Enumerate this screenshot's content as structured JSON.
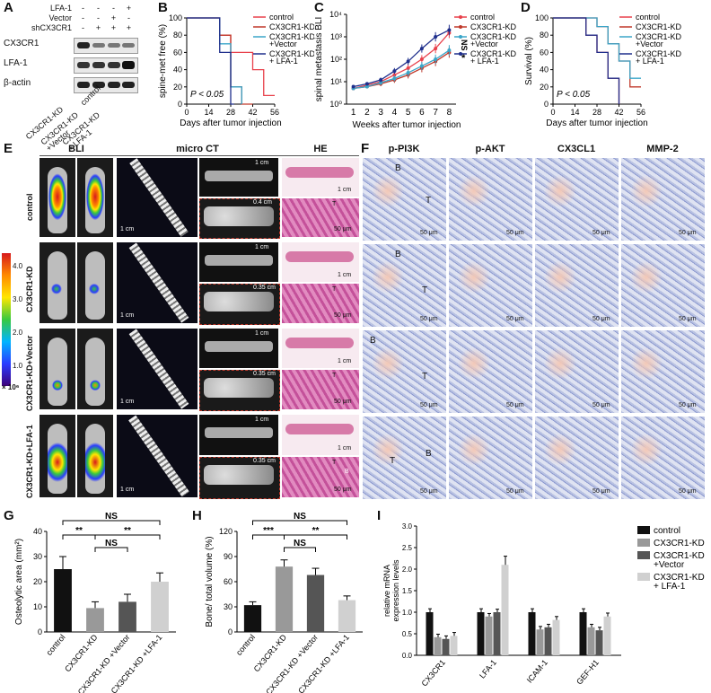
{
  "panel_letters": {
    "A": "A",
    "B": "B",
    "C": "C",
    "D": "D",
    "E": "E",
    "F": "F",
    "G": "G",
    "H": "H",
    "I": "I"
  },
  "panelA": {
    "rows": [
      "LFA-1",
      "Vector",
      "shCX3CR1"
    ],
    "signs": [
      [
        "-",
        "-",
        "-",
        "+"
      ],
      [
        "-",
        "-",
        "+",
        "-"
      ],
      [
        "-",
        "+",
        "+",
        "+"
      ]
    ],
    "blots": [
      "CX3CR1",
      "LFA-1",
      "β-actin"
    ],
    "lanes": [
      "control",
      "CX3CR1-KD",
      "CX3CR1-KD\n+Vector",
      "CX3CR1-KD\n+ LFA-1"
    ]
  },
  "panelB": {
    "ylabel": "spine-met free (%)",
    "xlabel": "Days after tumor injection",
    "pvalue": "P < 0.05",
    "yticks": [
      "0",
      "20",
      "40",
      "60",
      "80",
      "100"
    ],
    "xticks": [
      "0",
      "14",
      "28",
      "42",
      "56"
    ],
    "legend": [
      "control",
      "CX3CR1-KD",
      "CX3CR1-KD\n+Vector",
      "CX3CR1-KD\n+ LFA-1"
    ]
  },
  "panelC": {
    "ylabel": "spinal metastasis BLI",
    "xlabel": "Weeks after tumor injection",
    "yticks": [
      "10⁰",
      "10¹",
      "10²",
      "10³",
      "10⁴"
    ],
    "xticks": [
      "1",
      "2",
      "3",
      "4",
      "5",
      "6",
      "7",
      "8"
    ],
    "ns": "NS",
    "star": "*",
    "legend": [
      "control",
      "CX3CR1-KD",
      "CX3CR1-KD\n+Vector",
      "CX3CR1-KD\n+ LFA-1"
    ]
  },
  "panelD": {
    "ylabel": "Survival (%)",
    "xlabel": "Days after tumor injection",
    "pvalue": "P < 0.05",
    "yticks": [
      "0",
      "20",
      "40",
      "60",
      "80",
      "100"
    ],
    "xticks": [
      "0",
      "14",
      "28",
      "42",
      "56"
    ],
    "legend": [
      "control",
      "CX3CR1-KD",
      "CX3CR1-KD\n+Vector",
      "CX3CR1-KD\n+ LFA-1"
    ]
  },
  "panelE": {
    "headers": [
      "BLI",
      "micro CT",
      "HE"
    ],
    "rows": [
      "control",
      "CX3CR1-KD",
      "CX3CR1-KD+Vector",
      "CX3CR1-KD+LFA-1"
    ],
    "scale": [
      "4.0",
      "3.0",
      "2.0",
      "1.0",
      "× 10⁶"
    ],
    "sb_1cm": "1 cm",
    "sb_04": "0.4 cm",
    "sb_035": "0.35 cm",
    "sb_50": "50 μm",
    "T": "T",
    "B": "B"
  },
  "panelF": {
    "headers": [
      "p-PI3K",
      "p-AKT",
      "CX3CL1",
      "MMP-2"
    ],
    "sb": "50 μm",
    "T": "T",
    "B": "B"
  },
  "panelG": {
    "ylabel": "Osteolytic area (mm²)",
    "yticks": [
      "0",
      "10",
      "20",
      "30",
      "40"
    ],
    "NS": "NS",
    "stars": "**"
  },
  "panelH": {
    "ylabel": "Bone/ total volume (%)",
    "yticks": [
      "0",
      "30",
      "60",
      "90",
      "120"
    ],
    "NS": "NS",
    "s3": "***",
    "s2": "**"
  },
  "panelI": {
    "ylabel": "relative mRNA\nexpression levels",
    "yticks": [
      "0.0",
      "0.5",
      "1.0",
      "1.5",
      "2.0",
      "2.5",
      "3.0"
    ],
    "legend": [
      "control",
      "CX3CR1-KD",
      "CX3CR1-KD\n+Vector",
      "CX3CR1-KD\n+ LFA-1"
    ]
  },
  "colors": {
    "control": "#e8414b",
    "kd": "#c0392b",
    "vector": "#3aa6c9",
    "lfa": "#1f2f8c"
  },
  "chart_data": [
    {
      "type": "line",
      "title": "",
      "xlabel": "Days after tumor injection",
      "ylabel": "spine-met free (%)",
      "ylim": [
        0,
        100
      ],
      "series": [
        {
          "name": "control",
          "x": [
            0,
            14,
            21,
            28,
            35,
            42,
            49,
            56
          ],
          "y": [
            100,
            100,
            80,
            60,
            60,
            40,
            10,
            10
          ]
        },
        {
          "name": "CX3CR1-KD",
          "x": [
            0,
            14,
            21,
            28,
            35,
            42
          ],
          "y": [
            100,
            100,
            80,
            20,
            0,
            0
          ]
        },
        {
          "name": "CX3CR1-KD +Vector",
          "x": [
            0,
            14,
            21,
            28,
            35
          ],
          "y": [
            100,
            100,
            70,
            20,
            0
          ]
        },
        {
          "name": "CX3CR1-KD + LFA-1",
          "x": [
            0,
            14,
            21,
            28,
            30
          ],
          "y": [
            100,
            100,
            60,
            0,
            0
          ]
        }
      ]
    },
    {
      "type": "line",
      "title": "",
      "xlabel": "Weeks after tumor injection",
      "ylabel": "spinal metastasis BLI",
      "yscale": "log",
      "series": [
        {
          "name": "control",
          "x": [
            1,
            2,
            3,
            4,
            5,
            6,
            7,
            8
          ],
          "y": [
            5,
            7,
            10,
            20,
            40,
            100,
            300,
            1500
          ]
        },
        {
          "name": "CX3CR1-KD",
          "x": [
            1,
            2,
            3,
            4,
            5,
            6,
            7,
            8
          ],
          "y": [
            5,
            6,
            8,
            12,
            20,
            40,
            80,
            200
          ]
        },
        {
          "name": "CX3CR1-KD +Vector",
          "x": [
            1,
            2,
            3,
            4,
            5,
            6,
            7,
            8
          ],
          "y": [
            5,
            6,
            9,
            14,
            25,
            50,
            100,
            250
          ]
        },
        {
          "name": "CX3CR1-KD + LFA-1",
          "x": [
            1,
            2,
            3,
            4,
            5,
            6,
            7,
            8
          ],
          "y": [
            6,
            8,
            12,
            30,
            80,
            300,
            1000,
            2000
          ]
        }
      ]
    },
    {
      "type": "line",
      "title": "",
      "xlabel": "Days after tumor injection",
      "ylabel": "Survival (%)",
      "ylim": [
        0,
        100
      ],
      "series": [
        {
          "name": "control",
          "x": [
            0,
            14,
            21,
            28,
            35,
            42
          ],
          "y": [
            100,
            100,
            80,
            60,
            30,
            0
          ]
        },
        {
          "name": "CX3CR1-KD",
          "x": [
            0,
            14,
            28,
            35,
            42,
            49,
            56
          ],
          "y": [
            100,
            100,
            90,
            70,
            50,
            20,
            20
          ]
        },
        {
          "name": "CX3CR1-KD +Vector",
          "x": [
            0,
            14,
            28,
            35,
            42,
            49,
            56
          ],
          "y": [
            100,
            100,
            90,
            70,
            50,
            30,
            30
          ]
        },
        {
          "name": "CX3CR1-KD + LFA-1",
          "x": [
            0,
            14,
            21,
            28,
            35,
            42
          ],
          "y": [
            100,
            100,
            80,
            60,
            30,
            0
          ]
        }
      ]
    },
    {
      "type": "bar",
      "title": "",
      "ylabel": "Osteolytic area (mm²)",
      "ylim": [
        0,
        40
      ],
      "categories": [
        "control",
        "CX3CR1-KD",
        "CX3CR1-KD +Vector",
        "CX3CR1-KD +LFA-1"
      ],
      "values": [
        25,
        9.5,
        12,
        20
      ],
      "errors": [
        5,
        2.5,
        3,
        3.5
      ]
    },
    {
      "type": "bar",
      "title": "",
      "ylabel": "Bone/ total volume (%)",
      "ylim": [
        0,
        120
      ],
      "categories": [
        "control",
        "CX3CR1-KD",
        "CX3CR1-KD +Vector",
        "CX3CR1-KD +LFA-1"
      ],
      "values": [
        32,
        78,
        68,
        38
      ],
      "errors": [
        4,
        8,
        8,
        5
      ]
    },
    {
      "type": "bar",
      "title": "",
      "ylabel": "relative mRNA expression levels",
      "ylim": [
        0,
        3.0
      ],
      "categories": [
        "CX3CR1",
        "LFA-1",
        "ICAM-1",
        "GEF-H1"
      ],
      "series": [
        {
          "name": "control",
          "values": [
            1.0,
            1.0,
            1.0,
            1.0
          ]
        },
        {
          "name": "CX3CR1-KD",
          "values": [
            0.42,
            0.9,
            0.6,
            0.65
          ]
        },
        {
          "name": "CX3CR1-KD +Vector",
          "values": [
            0.38,
            1.0,
            0.65,
            0.58
          ]
        },
        {
          "name": "CX3CR1-KD + LFA-1",
          "values": [
            0.45,
            2.1,
            0.82,
            0.9
          ]
        }
      ]
    }
  ]
}
